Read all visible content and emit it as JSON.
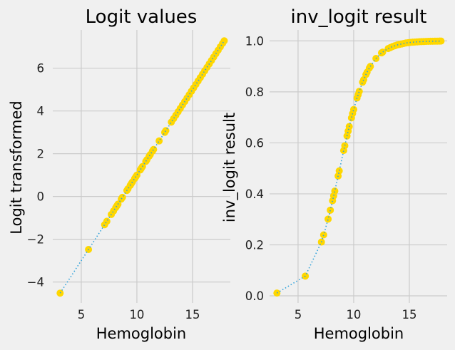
{
  "chart_data": [
    {
      "type": "scatter",
      "title": "Logit values",
      "xlabel": "Hemoglobin",
      "ylabel": "Logit transformed",
      "xlim": [
        2.44,
        18.4
      ],
      "ylim": [
        -4.98,
        7.79
      ],
      "xticks": [
        5,
        10,
        15
      ],
      "xtick_labels": [
        "5",
        "10",
        "15"
      ],
      "yticks": [
        -4,
        -2,
        0,
        2,
        4,
        6
      ],
      "ytick_labels": [
        "−4",
        "−2",
        "0",
        "2",
        "4",
        "6"
      ],
      "grid": true,
      "series": [
        {
          "name": "points",
          "style": "scatter",
          "color": "#ffd700"
        },
        {
          "name": "line",
          "style": "dotted-line",
          "color": "#30a2da"
        }
      ],
      "x": [
        3.1,
        5.65,
        7.1,
        7.3,
        7.7,
        7.9,
        8.1,
        8.2,
        8.3,
        8.6,
        8.7,
        9.1,
        9.2,
        9.4,
        9.5,
        9.6,
        9.8,
        9.9,
        10.0,
        10.3,
        10.4,
        10.5,
        10.8,
        10.9,
        11.1,
        11.2,
        11.4,
        11.5,
        12.0,
        12.5,
        12.6,
        13.1,
        13.3,
        13.5,
        13.7,
        13.9,
        14.1,
        14.3,
        14.5,
        14.7,
        14.9,
        15.1,
        15.3,
        15.5,
        15.7,
        15.9,
        16.1,
        16.3,
        16.5,
        16.7,
        16.9,
        17.1,
        17.3,
        17.5,
        17.7,
        17.85
      ],
      "y": [
        -4.52,
        -2.48,
        -1.32,
        -1.16,
        -0.84,
        -0.68,
        -0.52,
        -0.44,
        -0.36,
        -0.12,
        -0.04,
        0.28,
        0.36,
        0.52,
        0.6,
        0.68,
        0.84,
        0.92,
        1.0,
        1.24,
        1.32,
        1.4,
        1.64,
        1.72,
        1.88,
        1.96,
        2.12,
        2.2,
        2.6,
        3.0,
        3.08,
        3.48,
        3.64,
        3.8,
        3.96,
        4.12,
        4.28,
        4.44,
        4.6,
        4.76,
        4.92,
        5.08,
        5.24,
        5.4,
        5.56,
        5.72,
        5.88,
        6.04,
        6.2,
        6.36,
        6.52,
        6.68,
        6.84,
        7.0,
        7.16,
        7.28
      ]
    },
    {
      "type": "scatter",
      "title": "inv_logit result",
      "xlabel": "Hemoglobin",
      "ylabel": "inv_logit result",
      "xlim": [
        2.44,
        18.4
      ],
      "ylim": [
        -0.028,
        1.043
      ],
      "xticks": [
        5,
        10,
        15
      ],
      "xtick_labels": [
        "5",
        "10",
        "15"
      ],
      "yticks": [
        0,
        0.2,
        0.4,
        0.6,
        0.8,
        1.0
      ],
      "ytick_labels": [
        "0.0",
        "0.2",
        "0.4",
        "0.6",
        "0.8",
        "1.0"
      ],
      "grid": true,
      "series": [
        {
          "name": "points",
          "style": "scatter",
          "color": "#ffd700"
        },
        {
          "name": "line",
          "style": "dotted-line",
          "color": "#30a2da"
        }
      ],
      "x": [
        3.1,
        5.65,
        7.1,
        7.3,
        7.7,
        7.9,
        8.1,
        8.2,
        8.3,
        8.6,
        8.7,
        9.1,
        9.2,
        9.4,
        9.5,
        9.6,
        9.8,
        9.9,
        10.0,
        10.3,
        10.4,
        10.5,
        10.8,
        10.9,
        11.1,
        11.2,
        11.4,
        11.5,
        12.0,
        12.5,
        12.6,
        13.1,
        13.3,
        13.5,
        13.7,
        13.9,
        14.1,
        14.3,
        14.5,
        14.7,
        14.9,
        15.1,
        15.3,
        15.5,
        15.7,
        15.9,
        16.1,
        16.3,
        16.5,
        16.7,
        16.9,
        17.1,
        17.3,
        17.5,
        17.7,
        17.85
      ],
      "y": [
        0.0108,
        0.0773,
        0.211,
        0.239,
        0.301,
        0.336,
        0.373,
        0.392,
        0.411,
        0.47,
        0.49,
        0.57,
        0.589,
        0.627,
        0.646,
        0.664,
        0.698,
        0.715,
        0.731,
        0.776,
        0.789,
        0.802,
        0.838,
        0.848,
        0.868,
        0.877,
        0.893,
        0.9,
        0.931,
        0.953,
        0.956,
        0.97,
        0.974,
        0.978,
        0.981,
        0.984,
        0.986,
        0.988,
        0.99,
        0.992,
        0.993,
        0.994,
        0.995,
        0.9955,
        0.9962,
        0.9967,
        0.9972,
        0.9976,
        0.998,
        0.9983,
        0.9985,
        0.9987,
        0.9989,
        0.9991,
        0.9992,
        0.9993
      ]
    }
  ]
}
